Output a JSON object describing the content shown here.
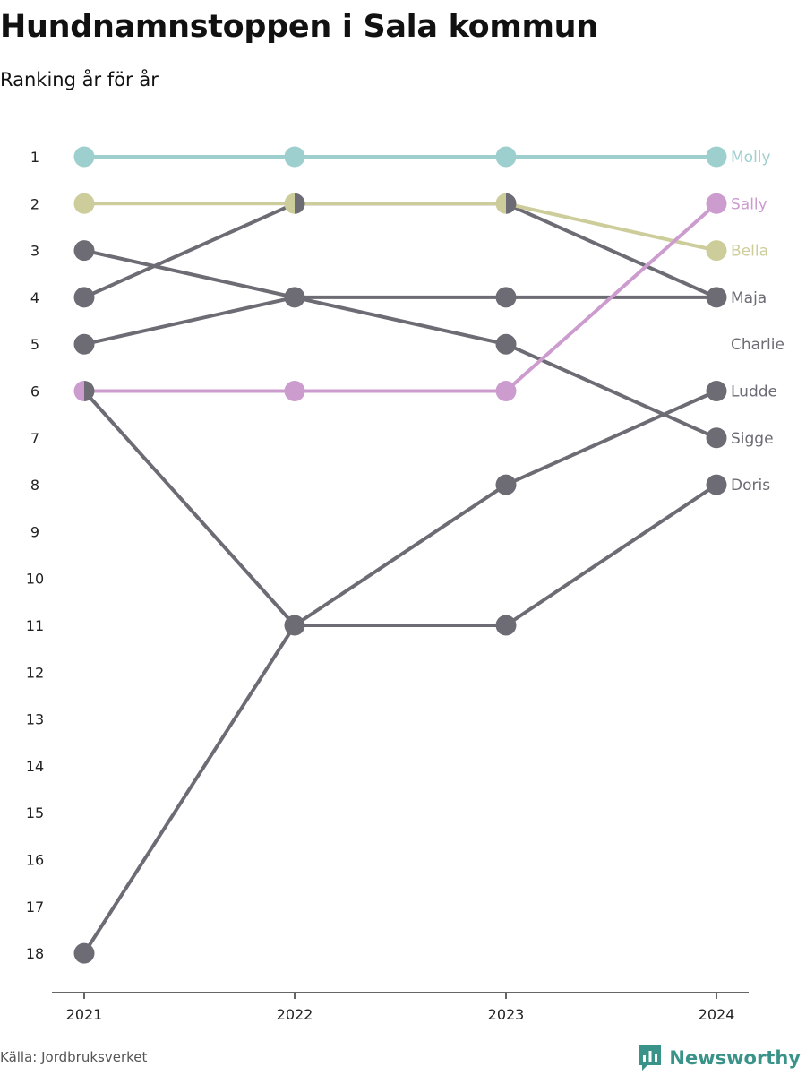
{
  "header": {
    "title": "Hundnamnstoppen i Sala kommun",
    "subtitle": "Ranking år för år"
  },
  "footer": {
    "source": "Källa: Jordbruksverket",
    "brand": "Newsworthy"
  },
  "colors": {
    "grey": "#6d6b73",
    "teal": "#9dcfce",
    "olive": "#cdcd9b",
    "pink": "#cc9ccf",
    "brand": "#3a9389"
  },
  "chart_data": {
    "type": "line",
    "x": [
      "2021",
      "2022",
      "2023",
      "2024"
    ],
    "y_ticks": [
      "1",
      "2",
      "3",
      "4",
      "5",
      "6",
      "7",
      "8",
      "9",
      "10",
      "11",
      "12",
      "13",
      "14",
      "15",
      "16",
      "17",
      "18"
    ],
    "ylim": [
      1,
      18
    ],
    "y_inverted": true,
    "grid": false,
    "series": [
      {
        "name": "Ludde",
        "values": [
          18,
          11,
          8,
          6
        ],
        "color": "#6d6b73"
      },
      {
        "name": "Doris",
        "values": [
          6,
          11,
          11,
          8
        ],
        "color": "#6d6b73"
      },
      {
        "name": "Sigge",
        "values": [
          3,
          4,
          5,
          7
        ],
        "color": "#6d6b73"
      },
      {
        "name": "Maja",
        "values": [
          4,
          2,
          2,
          4
        ],
        "color": "#6d6b73"
      },
      {
        "name": "Charlie",
        "values": [
          5,
          4,
          4,
          4
        ],
        "color": "#6d6b73"
      },
      {
        "name": "Bella",
        "values": [
          2,
          2,
          2,
          3
        ],
        "color": "#cdcd9b"
      },
      {
        "name": "Sally",
        "values": [
          6,
          6,
          6,
          2
        ],
        "color": "#cc9ccf"
      },
      {
        "name": "Molly",
        "values": [
          1,
          1,
          1,
          1
        ],
        "color": "#9dcfce"
      }
    ],
    "end_labels": [
      {
        "name": "Molly",
        "rank": 1,
        "color": "#9dcfce"
      },
      {
        "name": "Sally",
        "rank": 2,
        "color": "#cc9ccf"
      },
      {
        "name": "Bella",
        "rank": 3,
        "color": "#cdcd9b"
      },
      {
        "name": "Maja",
        "rank": 4,
        "color": "#6d6b73"
      },
      {
        "name": "Charlie",
        "rank": 5,
        "color": "#6d6b73"
      },
      {
        "name": "Ludde",
        "rank": 6,
        "color": "#6d6b73"
      },
      {
        "name": "Sigge",
        "rank": 7,
        "color": "#6d6b73"
      },
      {
        "name": "Doris",
        "rank": 8,
        "color": "#6d6b73"
      }
    ]
  }
}
